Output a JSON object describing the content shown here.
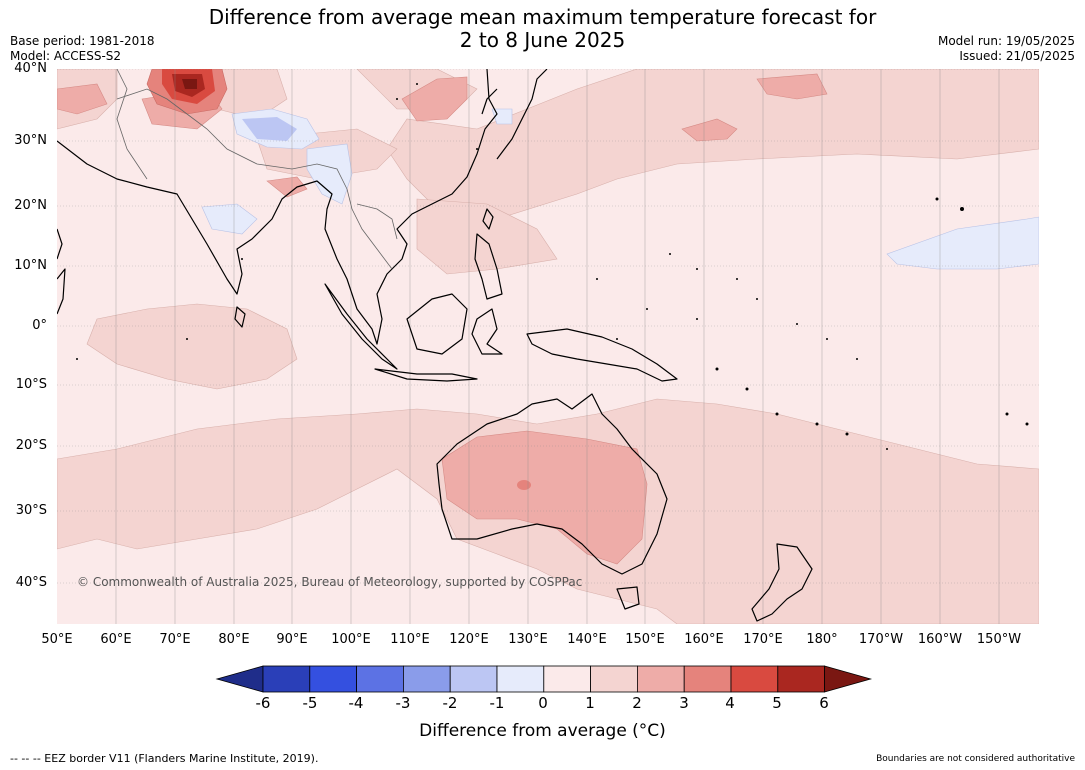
{
  "title_line1": "Difference from average mean maximum temperature forecast for",
  "title_line2": "2 to 8 June 2025",
  "meta_left": [
    "Base period: 1981-2018",
    "Model: ACCESS-S2"
  ],
  "meta_right": [
    "Model run: 19/05/2025",
    "Issued: 21/05/2025"
  ],
  "lat_labels": [
    "40°N",
    "30°N",
    "20°N",
    "10°N",
    "0°",
    "10°S",
    "20°S",
    "30°S",
    "40°S"
  ],
  "lon_labels": [
    "50°E",
    "60°E",
    "70°E",
    "80°E",
    "90°E",
    "100°E",
    "110°E",
    "120°E",
    "130°E",
    "140°E",
    "150°E",
    "160°E",
    "170°E",
    "180°",
    "170°W",
    "160°W",
    "150°W"
  ],
  "copyright": "© Commonwealth of Australia 2025, Bureau of Meteorology, supported by COSPPac",
  "colorbar": {
    "ticks": [
      "-6",
      "-5",
      "-4",
      "-3",
      "-2",
      "-1",
      "0",
      "1",
      "2",
      "3",
      "4",
      "5",
      "6"
    ],
    "colors": [
      "#1f2d8a",
      "#2a3fb8",
      "#3450e0",
      "#5c72e4",
      "#8a9cea",
      "#bcc6f3",
      "#e6ebfb",
      "#fbeaea",
      "#f4d4d1",
      "#eeaca8",
      "#e5837c",
      "#d94a40",
      "#aa2720",
      "#7a1712"
    ],
    "title": "Difference from average (°C)"
  },
  "footer_left": "--  --  -- EEZ border V11 (Flanders Marine Institute, 2019).",
  "footer_right": "Boundaries are not considered authoritative"
}
